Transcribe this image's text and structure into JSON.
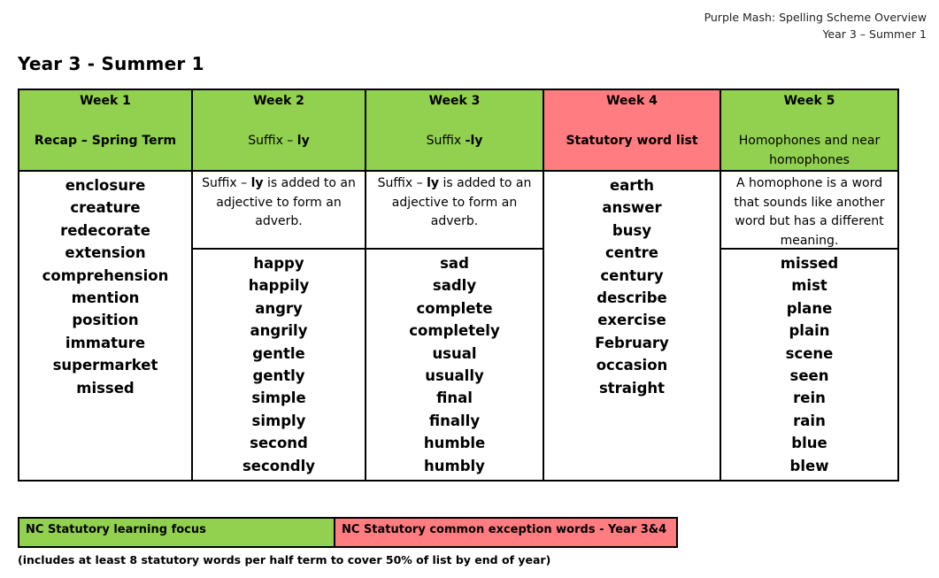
{
  "header": {
    "doc_title": "Purple Mash: Spelling Scheme Overview",
    "doc_subtitle": "Year 3 – Summer 1"
  },
  "title": "Year 3 - Summer 1",
  "weeks": [
    {
      "week": "Week 1",
      "topic": "Recap – Spring Term",
      "color": "#92d050",
      "description": "",
      "words": [
        "enclosure",
        "creature",
        "redecorate",
        "extension",
        "comprehension",
        "mention",
        "position",
        "immature",
        "supermarket",
        "missed"
      ]
    },
    {
      "week": "Week 2",
      "topic_prefix": "Suffix – ",
      "topic_bold": "ly",
      "color": "#92d050",
      "desc_prefix": "Suffix – ",
      "desc_bold": "ly",
      "desc_suffix": " is added to an adjective to form an adverb.",
      "words": [
        "happy",
        "happily",
        "angry",
        "angrily",
        "gentle",
        "gently",
        "simple",
        "simply",
        "second",
        "secondly"
      ]
    },
    {
      "week": "Week 3",
      "topic_prefix": "Suffix ",
      "topic_bold": "-ly",
      "color": "#92d050",
      "desc_prefix": "Suffix – ",
      "desc_bold": "ly",
      "desc_suffix": " is added to an adjective to form an adverb.",
      "words": [
        "sad",
        "sadly",
        "complete",
        "completely",
        "usual",
        "usually",
        "final",
        "finally",
        "humble",
        "humbly"
      ]
    },
    {
      "week": "Week 4",
      "topic": "Statutory word list",
      "color": "#ff7c80",
      "description": "",
      "words": [
        "earth",
        "answer",
        "busy",
        "centre",
        "century",
        "describe",
        "exercise",
        "February",
        "occasion",
        "straight"
      ]
    },
    {
      "week": "Week 5",
      "topic": "Homophones and near homophones",
      "color": "#92d050",
      "description": "A homophone is a word that sounds like another word but has a different meaning.",
      "words": [
        "missed",
        "mist",
        "plane",
        "plain",
        "scene",
        "seen",
        "rein",
        "rain",
        "blue",
        "blew"
      ]
    }
  ],
  "legend": {
    "green_label": "NC Statutory learning focus",
    "red_label": "NC Statutory common exception words - Year 3&4",
    "green_color": "#92d050",
    "red_color": "#ff7c80"
  },
  "footnote": "(includes at least 8 statutory words per half term to cover 50% of list by end of year)"
}
